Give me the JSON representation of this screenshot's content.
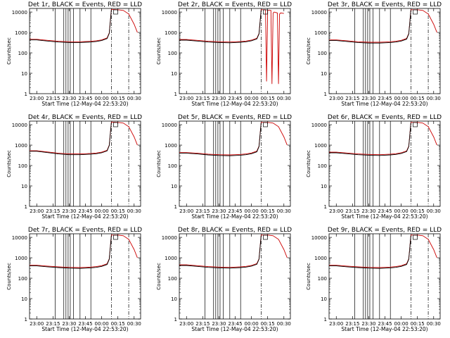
{
  "colors": {
    "events": "#000000",
    "lld": "#cc0000",
    "axis": "#000000"
  },
  "shared": {
    "ylabel": "Counts/sec",
    "xlabel": "Start Time (12-May-04 22:53:20)",
    "x_ticks": [
      "23:00",
      "23:15",
      "23:30",
      "23:45",
      "00:00",
      "00:15",
      "00:30"
    ],
    "y_ticks": [
      "1",
      "10",
      "100",
      "1000",
      "10000"
    ],
    "ylim": [
      1,
      15000
    ],
    "yscale": "log",
    "xlim": [
      "22:53:20",
      "00:36:00"
    ]
  },
  "chart_data": [
    {
      "type": "line",
      "title": "Det 1r, BLACK = Events, RED = LLD",
      "series": [
        {
          "name": "Events",
          "color": "#000000",
          "x": [
            "22:53:20",
            "23:00",
            "23:10",
            "23:20",
            "23:30",
            "23:40",
            "23:45",
            "23:50",
            "23:55",
            "00:00",
            "00:05",
            "00:07",
            "00:09"
          ],
          "y": [
            430,
            430,
            380,
            340,
            320,
            320,
            330,
            340,
            360,
            400,
            500,
            900,
            13000
          ]
        },
        {
          "name": "LLD",
          "color": "#cc0000",
          "x": [
            "22:53:20",
            "23:00",
            "23:10",
            "23:20",
            "23:30",
            "23:40",
            "23:45",
            "23:50",
            "23:55",
            "00:00",
            "00:05",
            "00:07",
            "00:09",
            "00:15",
            "00:20",
            "00:25",
            "00:30",
            "00:33"
          ],
          "y": [
            460,
            460,
            410,
            370,
            350,
            350,
            360,
            370,
            390,
            430,
            540,
            950,
            13500,
            13000,
            12000,
            8000,
            2500,
            1000
          ]
        }
      ],
      "vertical_lines": [
        "23:17",
        "23:25",
        "23:27",
        "23:29",
        "23:31",
        "23:34",
        "23:40",
        "23:50"
      ],
      "dash_dot_lines": [
        "00:09",
        "00:25"
      ]
    },
    {
      "type": "line",
      "title": "Det 2r, BLACK = Events, RED = LLD",
      "series": [
        {
          "name": "Events",
          "color": "#000000",
          "x": [
            "22:53:20",
            "23:00",
            "23:10",
            "23:20",
            "23:30",
            "23:40",
            "23:45",
            "23:50",
            "23:55",
            "00:00",
            "00:05",
            "00:07",
            "00:09"
          ],
          "y": [
            420,
            420,
            380,
            340,
            320,
            310,
            320,
            330,
            350,
            390,
            480,
            850,
            12500
          ]
        },
        {
          "name": "LLD",
          "color": "#cc0000",
          "x": [
            "22:53:20",
            "23:00",
            "23:10",
            "23:20",
            "23:30",
            "23:40",
            "23:45",
            "23:50",
            "23:55",
            "00:00",
            "00:05",
            "00:07",
            "00:09",
            "00:13",
            "00:14",
            "00:15",
            "00:16",
            "00:18",
            "00:19",
            "00:20",
            "00:21",
            "00:24",
            "00:25",
            "00:26",
            "00:27",
            "00:30"
          ],
          "y": [
            450,
            450,
            410,
            370,
            350,
            340,
            350,
            360,
            380,
            420,
            520,
            900,
            13000,
            13000,
            4,
            12000,
            12500,
            12000,
            3,
            9000,
            10000,
            9000,
            3,
            8000,
            9000,
            8500
          ]
        }
      ],
      "vertical_lines": [
        "23:17",
        "23:25",
        "23:27",
        "23:29",
        "23:31",
        "23:34",
        "23:40",
        "23:50"
      ],
      "dash_dot_lines": [
        "00:09"
      ]
    },
    {
      "type": "line",
      "title": "Det 3r, BLACK = Events, RED = LLD",
      "series": [
        {
          "name": "Events",
          "color": "#000000",
          "x": [
            "22:53:20",
            "23:00",
            "23:10",
            "23:20",
            "23:30",
            "23:40",
            "23:45",
            "23:50",
            "23:55",
            "00:00",
            "00:05",
            "00:07",
            "00:09"
          ],
          "y": [
            400,
            400,
            360,
            320,
            300,
            300,
            310,
            320,
            340,
            380,
            470,
            850,
            12500
          ]
        },
        {
          "name": "LLD",
          "color": "#cc0000",
          "x": [
            "22:53:20",
            "23:00",
            "23:10",
            "23:20",
            "23:30",
            "23:40",
            "23:45",
            "23:50",
            "23:55",
            "00:00",
            "00:05",
            "00:07",
            "00:09",
            "00:15",
            "00:20",
            "00:25",
            "00:30",
            "00:33"
          ],
          "y": [
            430,
            430,
            390,
            350,
            330,
            330,
            340,
            350,
            370,
            410,
            510,
            900,
            13000,
            13000,
            12000,
            8000,
            2500,
            1000
          ]
        }
      ],
      "vertical_lines": [
        "23:17",
        "23:25",
        "23:27",
        "23:29",
        "23:31",
        "23:34",
        "23:40",
        "23:50"
      ],
      "dash_dot_lines": [
        "00:09",
        "00:25"
      ]
    },
    {
      "type": "line",
      "title": "Det 4r, BLACK = Events, RED = LLD",
      "series": [
        {
          "name": "Events",
          "color": "#000000",
          "x": [
            "22:53:20",
            "23:00",
            "23:10",
            "23:20",
            "23:30",
            "23:40",
            "23:45",
            "23:50",
            "23:55",
            "00:00",
            "00:05",
            "00:07",
            "00:09"
          ],
          "y": [
            500,
            500,
            430,
            370,
            340,
            340,
            350,
            360,
            380,
            420,
            520,
            950,
            13000
          ]
        },
        {
          "name": "LLD",
          "color": "#cc0000",
          "x": [
            "22:53:20",
            "23:00",
            "23:10",
            "23:20",
            "23:30",
            "23:40",
            "23:45",
            "23:50",
            "23:55",
            "00:00",
            "00:05",
            "00:07",
            "00:09",
            "00:15",
            "00:20",
            "00:25",
            "00:30",
            "00:33"
          ],
          "y": [
            530,
            530,
            460,
            400,
            370,
            370,
            380,
            390,
            410,
            450,
            560,
            1000,
            13500,
            13000,
            12000,
            8000,
            2500,
            1000
          ]
        }
      ],
      "vertical_lines": [
        "23:17",
        "23:25",
        "23:27",
        "23:29",
        "23:31",
        "23:34",
        "23:40",
        "23:50"
      ],
      "dash_dot_lines": [
        "00:09",
        "00:25"
      ]
    },
    {
      "type": "line",
      "title": "Det 5r, BLACK = Events, RED = LLD",
      "series": [
        {
          "name": "Events",
          "color": "#000000",
          "x": [
            "22:53:20",
            "23:00",
            "23:10",
            "23:20",
            "23:30",
            "23:40",
            "23:45",
            "23:50",
            "23:55",
            "00:00",
            "00:05",
            "00:07",
            "00:09"
          ],
          "y": [
            400,
            400,
            370,
            330,
            310,
            300,
            310,
            320,
            340,
            380,
            470,
            850,
            12500
          ]
        },
        {
          "name": "LLD",
          "color": "#cc0000",
          "x": [
            "22:53:20",
            "23:00",
            "23:10",
            "23:20",
            "23:30",
            "23:40",
            "23:45",
            "23:50",
            "23:55",
            "00:00",
            "00:05",
            "00:07",
            "00:09",
            "00:15",
            "00:20",
            "00:25",
            "00:30",
            "00:33"
          ],
          "y": [
            430,
            430,
            400,
            360,
            340,
            330,
            340,
            350,
            370,
            410,
            510,
            900,
            13000,
            13000,
            12000,
            8000,
            2500,
            1000
          ]
        }
      ],
      "vertical_lines": [
        "23:17",
        "23:25",
        "23:27",
        "23:29",
        "23:31",
        "23:34",
        "23:40",
        "23:50"
      ],
      "dash_dot_lines": [
        "00:09"
      ]
    },
    {
      "type": "line",
      "title": "Det 6r, BLACK = Events, RED = LLD",
      "series": [
        {
          "name": "Events",
          "color": "#000000",
          "x": [
            "22:53:20",
            "23:00",
            "23:10",
            "23:20",
            "23:30",
            "23:40",
            "23:45",
            "23:50",
            "23:55",
            "00:00",
            "00:05",
            "00:07",
            "00:09"
          ],
          "y": [
            420,
            420,
            380,
            340,
            320,
            310,
            320,
            330,
            350,
            390,
            480,
            860,
            12500
          ]
        },
        {
          "name": "LLD",
          "color": "#cc0000",
          "x": [
            "22:53:20",
            "23:00",
            "23:10",
            "23:20",
            "23:30",
            "23:40",
            "23:45",
            "23:50",
            "23:55",
            "00:00",
            "00:05",
            "00:07",
            "00:09",
            "00:15",
            "00:20",
            "00:25",
            "00:30",
            "00:33"
          ],
          "y": [
            450,
            450,
            410,
            370,
            350,
            340,
            350,
            360,
            380,
            420,
            520,
            900,
            13000,
            13000,
            12000,
            8000,
            2500,
            1000
          ]
        }
      ],
      "vertical_lines": [
        "23:17",
        "23:25",
        "23:27",
        "23:29",
        "23:31",
        "23:34",
        "23:40",
        "23:50"
      ],
      "dash_dot_lines": [
        "00:09",
        "00:25"
      ]
    },
    {
      "type": "line",
      "title": "Det 7r, BLACK = Events, RED = LLD",
      "series": [
        {
          "name": "Events",
          "color": "#000000",
          "x": [
            "22:53:20",
            "23:00",
            "23:10",
            "23:20",
            "23:30",
            "23:40",
            "23:45",
            "23:50",
            "23:55",
            "00:00",
            "00:05",
            "00:07",
            "00:09"
          ],
          "y": [
            400,
            400,
            360,
            330,
            310,
            300,
            310,
            320,
            340,
            380,
            470,
            850,
            12500
          ]
        },
        {
          "name": "LLD",
          "color": "#cc0000",
          "x": [
            "22:53:20",
            "23:00",
            "23:10",
            "23:20",
            "23:30",
            "23:40",
            "23:45",
            "23:50",
            "23:55",
            "00:00",
            "00:05",
            "00:07",
            "00:09",
            "00:15",
            "00:20",
            "00:25",
            "00:30",
            "00:33"
          ],
          "y": [
            430,
            430,
            390,
            360,
            340,
            330,
            340,
            350,
            370,
            410,
            510,
            900,
            13000,
            13000,
            12000,
            8000,
            2500,
            1000
          ]
        }
      ],
      "vertical_lines": [
        "23:17",
        "23:25",
        "23:27",
        "23:29",
        "23:31",
        "23:34",
        "23:40",
        "23:50"
      ],
      "dash_dot_lines": [
        "00:09",
        "00:25"
      ]
    },
    {
      "type": "line",
      "title": "Det 8r, BLACK = Events, RED = LLD",
      "series": [
        {
          "name": "Events",
          "color": "#000000",
          "x": [
            "22:53:20",
            "23:00",
            "23:10",
            "23:20",
            "23:30",
            "23:40",
            "23:45",
            "23:50",
            "23:55",
            "00:00",
            "00:05",
            "00:07",
            "00:09"
          ],
          "y": [
            420,
            420,
            380,
            340,
            320,
            310,
            320,
            330,
            350,
            390,
            480,
            860,
            12500
          ]
        },
        {
          "name": "LLD",
          "color": "#cc0000",
          "x": [
            "22:53:20",
            "23:00",
            "23:10",
            "23:20",
            "23:30",
            "23:40",
            "23:45",
            "23:50",
            "23:55",
            "00:00",
            "00:05",
            "00:07",
            "00:09",
            "00:15",
            "00:20",
            "00:25",
            "00:30",
            "00:33"
          ],
          "y": [
            450,
            450,
            410,
            370,
            350,
            340,
            350,
            360,
            380,
            420,
            520,
            900,
            13000,
            13000,
            12000,
            8000,
            2500,
            1000
          ]
        }
      ],
      "vertical_lines": [
        "23:17",
        "23:25",
        "23:27",
        "23:29",
        "23:31",
        "23:34",
        "23:40",
        "23:50"
      ],
      "dash_dot_lines": [
        "00:09"
      ]
    },
    {
      "type": "line",
      "title": "Det 9r, BLACK = Events, RED = LLD",
      "series": [
        {
          "name": "Events",
          "color": "#000000",
          "x": [
            "22:53:20",
            "23:00",
            "23:10",
            "23:20",
            "23:30",
            "23:40",
            "23:45",
            "23:50",
            "23:55",
            "00:00",
            "00:05",
            "00:07",
            "00:09"
          ],
          "y": [
            400,
            400,
            360,
            330,
            310,
            300,
            310,
            320,
            340,
            380,
            470,
            850,
            12500
          ]
        },
        {
          "name": "LLD",
          "color": "#cc0000",
          "x": [
            "22:53:20",
            "23:00",
            "23:10",
            "23:20",
            "23:30",
            "23:40",
            "23:45",
            "23:50",
            "23:55",
            "00:00",
            "00:05",
            "00:07",
            "00:09",
            "00:15",
            "00:20",
            "00:25",
            "00:30",
            "00:33"
          ],
          "y": [
            430,
            430,
            390,
            360,
            340,
            330,
            340,
            350,
            370,
            410,
            510,
            900,
            13000,
            13000,
            12000,
            8000,
            2500,
            1000
          ]
        }
      ],
      "vertical_lines": [
        "23:17",
        "23:25",
        "23:27",
        "23:29",
        "23:31",
        "23:34",
        "23:40",
        "23:50"
      ],
      "dash_dot_lines": [
        "00:09",
        "00:25"
      ]
    }
  ]
}
